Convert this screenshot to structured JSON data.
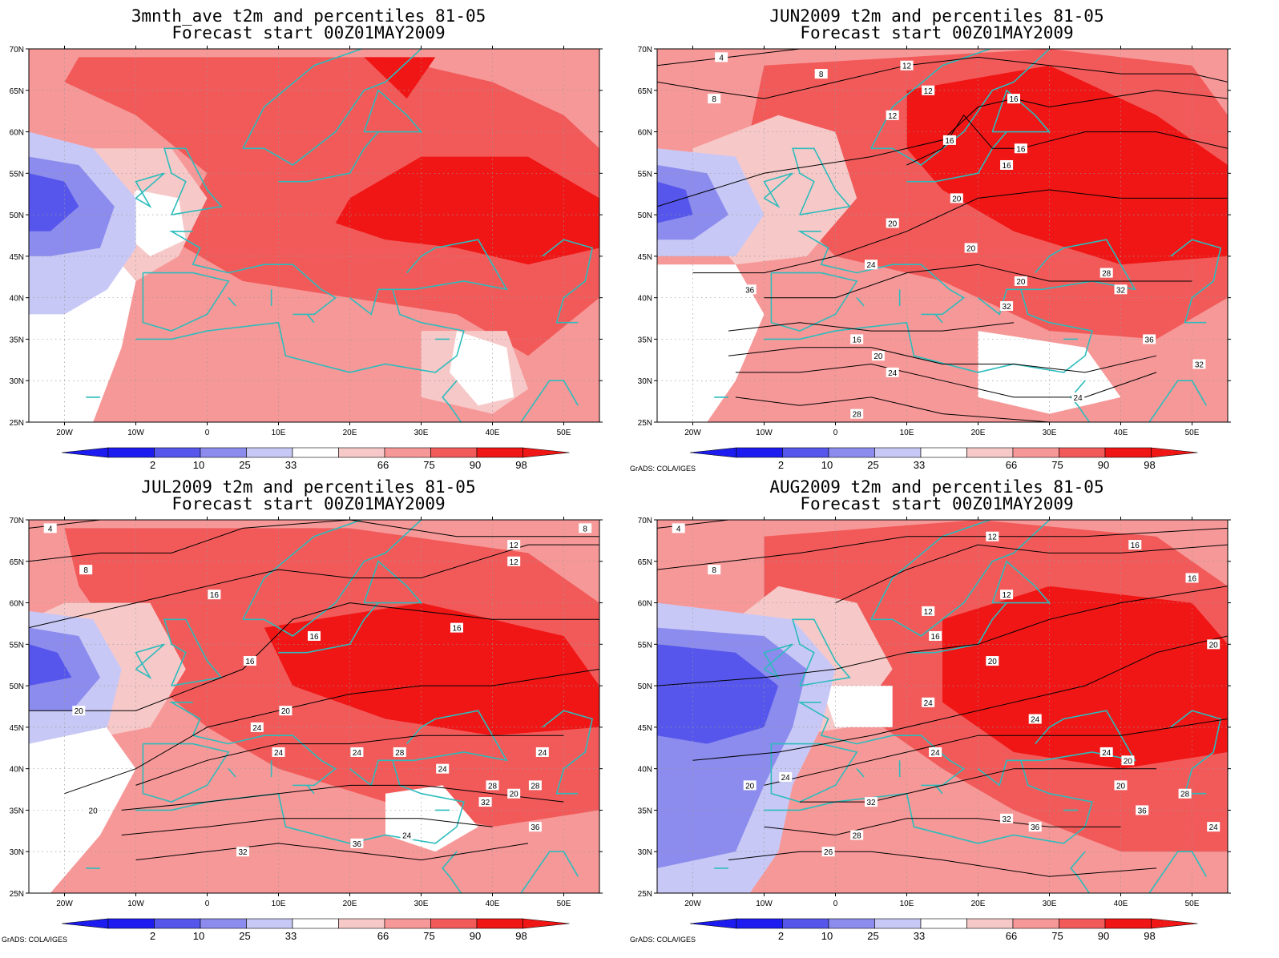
{
  "colors": {
    "p2": "#1c1cf0",
    "p10": "#5656ec",
    "p25": "#8c8cee",
    "p33": "#c8c8f6",
    "neutral": "#ffffff",
    "p66": "#f7c8c8",
    "p75": "#f79898",
    "p90": "#f25a5a",
    "p98": "#f01616",
    "coast": "#2cbcbc",
    "contour": "#000000",
    "grid": "#999999"
  },
  "axes": {
    "lat_ticks": [
      "70N",
      "65N",
      "60N",
      "55N",
      "50N",
      "45N",
      "40N",
      "35N",
      "30N",
      "25N"
    ],
    "lon_ticks": [
      "20W",
      "10W",
      "0",
      "10E",
      "20E",
      "30E",
      "40E",
      "50E"
    ]
  },
  "colorbar": {
    "labels": [
      "2",
      "10",
      "25",
      "33",
      "66",
      "75",
      "90",
      "98"
    ]
  },
  "credit": "GrADS: COLA/IGES",
  "panels": [
    {
      "id": "avg",
      "title_line1": "3mnth_ave t2m and percentiles 81-05",
      "title_line2": "Forecast start 00Z01MAY2009",
      "show_credit": false,
      "contour_labels": []
    },
    {
      "id": "jun",
      "title_line1": "JUN2009 t2m and percentiles 81-05",
      "title_line2": "Forecast start 00Z01MAY2009",
      "show_credit": true,
      "contour_labels": [
        "4",
        "8",
        "8",
        "12",
        "12",
        "12",
        "16",
        "16",
        "16",
        "16",
        "20",
        "20",
        "20",
        "24",
        "20",
        "28",
        "32",
        "36",
        "16",
        "20",
        "24",
        "28",
        "32",
        "36",
        "32",
        "24"
      ]
    },
    {
      "id": "jul",
      "title_line1": "JUL2009 t2m and percentiles 81-05",
      "title_line2": "Forecast start 00Z01MAY2009",
      "show_credit": true,
      "contour_labels": [
        "4",
        "8",
        "8",
        "12",
        "12",
        "16",
        "16",
        "16",
        "16",
        "20",
        "20",
        "24",
        "24",
        "24",
        "28",
        "24",
        "28",
        "20",
        "24",
        "28",
        "32",
        "36",
        "24",
        "36",
        "32",
        "20"
      ]
    },
    {
      "id": "aug",
      "title_line1": "AUG2009 t2m and percentiles 81-05",
      "title_line2": "Forecast start 00Z01MAY2009",
      "show_credit": true,
      "contour_labels": [
        "4",
        "8",
        "12",
        "12",
        "16",
        "12",
        "16",
        "16",
        "20",
        "20",
        "24",
        "24",
        "24",
        "24",
        "20",
        "20",
        "24",
        "28",
        "32",
        "36",
        "26",
        "32",
        "36",
        "28",
        "24",
        "20"
      ]
    }
  ]
}
